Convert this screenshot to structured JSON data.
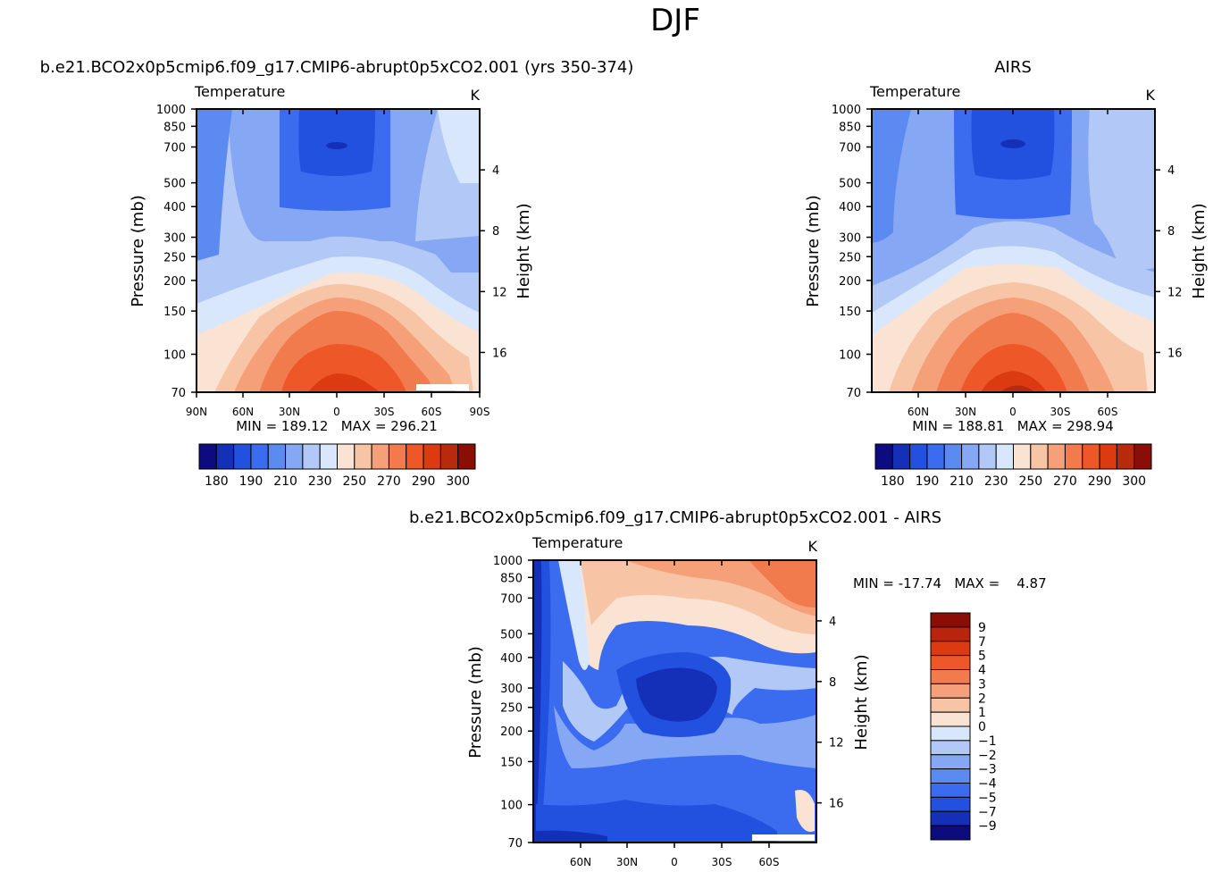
{
  "figure": {
    "title": "DJF"
  },
  "chart_data": [
    {
      "type": "heatmap",
      "title": "b.e21.BCO2x0p5cmip6.f09_g17.CMIP6-abrupt0p5xCO2.001 (yrs 350-374)",
      "subtitle_left": "Temperature",
      "subtitle_right": "K",
      "ylabel": "Pressure (mb)",
      "y2label": "Height (km)",
      "x_ticks": [
        "90N",
        "60N",
        "30N",
        "0",
        "30S",
        "60S",
        "90S"
      ],
      "y_ticks": [
        "70",
        "100",
        "150",
        "200",
        "250",
        "300",
        "400",
        "500",
        "700",
        "850",
        "1000"
      ],
      "y2_ticks": [
        "16",
        "12",
        "8",
        "4"
      ],
      "stats": "MIN = 189.12   MAX = 296.21",
      "colorbar_labels": [
        "180",
        "190",
        "210",
        "230",
        "250",
        "270",
        "290",
        "300"
      ],
      "colorbar_colors": [
        "#0c0c80",
        "#1530b8",
        "#2351df",
        "#3b6cf0",
        "#5b8af0",
        "#86a8f4",
        "#b2c9f8",
        "#d8e7fb",
        "#fbe3d4",
        "#f8c4a6",
        "#f5a079",
        "#f27b4e",
        "#ee5727",
        "#dc3a10",
        "#b82a0c",
        "#8a0e06"
      ]
    },
    {
      "type": "heatmap",
      "title": "AIRS",
      "subtitle_left": "Temperature",
      "subtitle_right": "K",
      "ylabel": "Pressure (mb)",
      "y2label": "Height (km)",
      "x_ticks": [
        "60N",
        "30N",
        "0",
        "30S",
        "60S"
      ],
      "y_ticks": [
        "70",
        "100",
        "150",
        "200",
        "250",
        "300",
        "400",
        "500",
        "700",
        "850",
        "1000"
      ],
      "y2_ticks": [
        "16",
        "12",
        "8",
        "4"
      ],
      "stats": "MIN = 188.81   MAX = 298.94",
      "colorbar_labels": [
        "180",
        "190",
        "210",
        "230",
        "250",
        "270",
        "290",
        "300"
      ],
      "colorbar_colors": [
        "#0c0c80",
        "#1530b8",
        "#2351df",
        "#3b6cf0",
        "#5b8af0",
        "#86a8f4",
        "#b2c9f8",
        "#d8e7fb",
        "#fbe3d4",
        "#f8c4a6",
        "#f5a079",
        "#f27b4e",
        "#ee5727",
        "#dc3a10",
        "#b82a0c",
        "#8a0e06"
      ]
    },
    {
      "type": "heatmap",
      "title": "b.e21.BCO2x0p5cmip6.f09_g17.CMIP6-abrupt0p5xCO2.001 - AIRS",
      "subtitle_left": "Temperature",
      "subtitle_right": "K",
      "ylabel": "Pressure (mb)",
      "y2label": "Height (km)",
      "x_ticks": [
        "60N",
        "30N",
        "0",
        "30S",
        "60S"
      ],
      "y_ticks": [
        "70",
        "100",
        "150",
        "200",
        "250",
        "300",
        "400",
        "500",
        "700",
        "850",
        "1000"
      ],
      "y2_ticks": [
        "16",
        "12",
        "8",
        "4"
      ],
      "stats": "MIN = -17.74   MAX =    4.87",
      "colorbar_labels": [
        "9",
        "7",
        "5",
        "4",
        "3",
        "2",
        "1",
        "0",
        "-1",
        "-2",
        "-3",
        "-4",
        "-5",
        "-7",
        "-9"
      ],
      "colorbar_colors": [
        "#8a0e06",
        "#b8240c",
        "#dc3a10",
        "#ee5727",
        "#f27b4e",
        "#f5a079",
        "#f8c4a6",
        "#fbe3d4",
        "#d8e7fb",
        "#b2c9f8",
        "#86a8f4",
        "#5b8af0",
        "#3b6cf0",
        "#2351df",
        "#1530b8",
        "#0c0c80"
      ]
    }
  ]
}
